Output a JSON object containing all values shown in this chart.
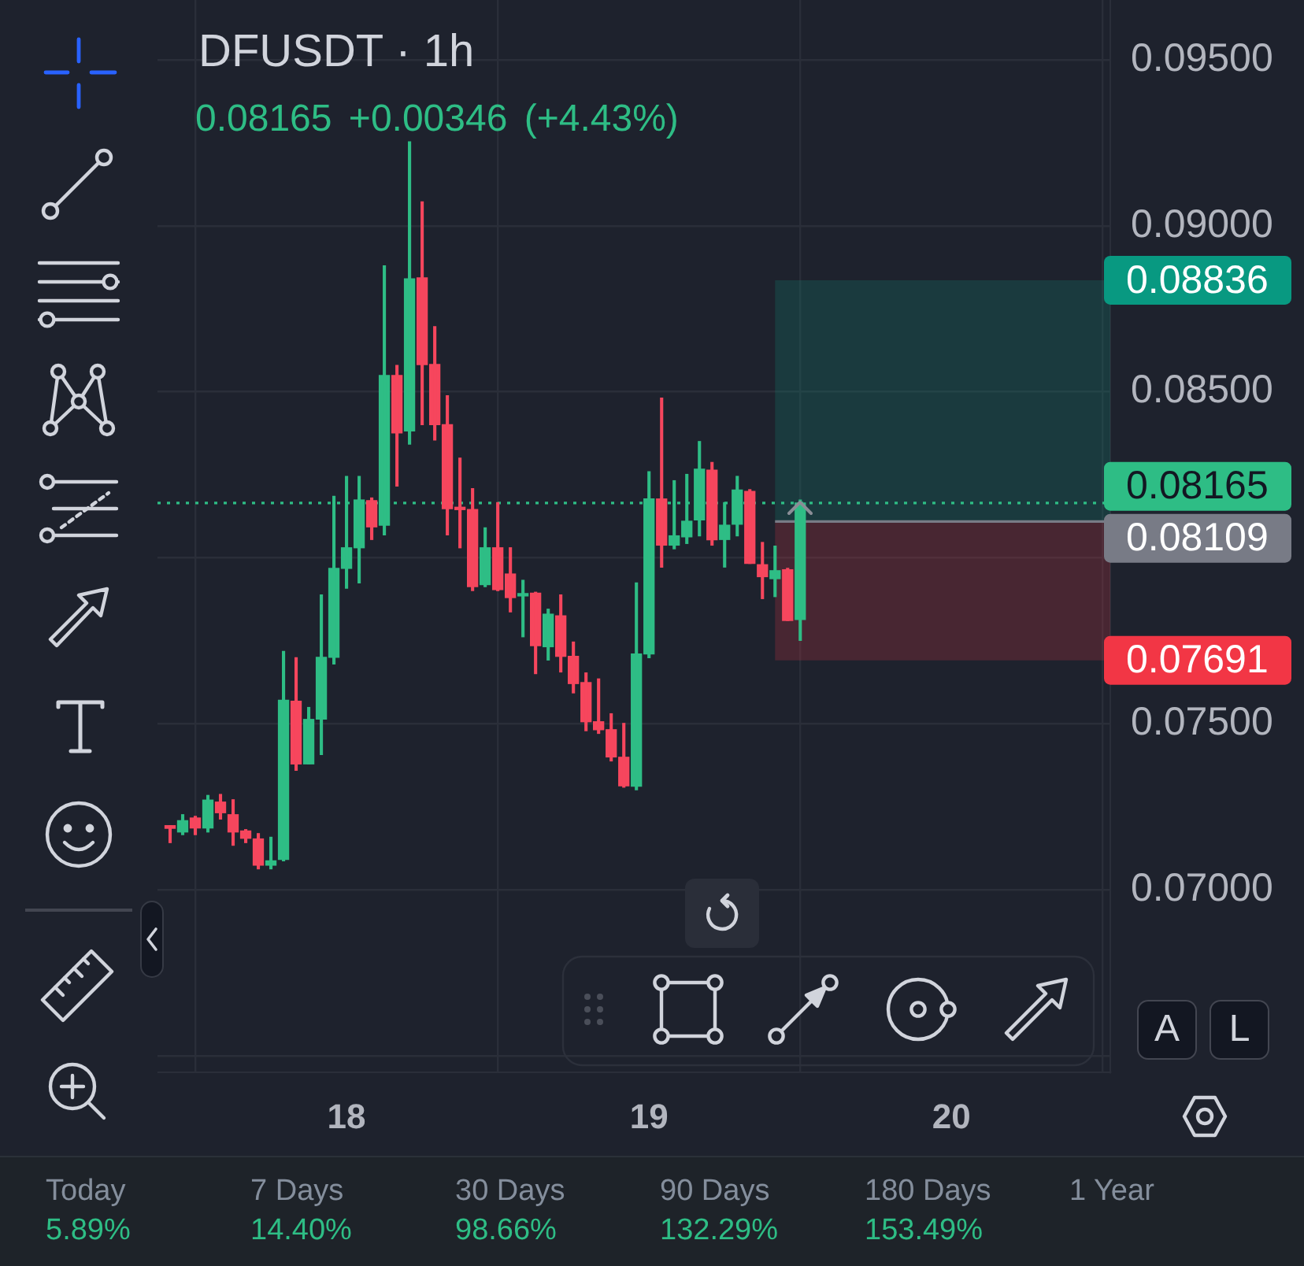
{
  "chart_data": {
    "type": "candlestick",
    "title": "DFUSDT · 1h",
    "subtitle": "0.08165 +0.00346 (+4.43%)",
    "x": [
      17.4167,
      17.4583,
      17.5,
      17.5417,
      17.5833,
      17.625,
      17.6667,
      17.7083,
      17.75,
      17.7917,
      17.8333,
      17.875,
      17.9167,
      17.9583,
      18,
      18.0417,
      18.0833,
      18.125,
      18.1667,
      18.2083,
      18.25,
      18.2917,
      18.3333,
      18.375,
      18.4167,
      18.4583,
      18.5,
      18.5417,
      18.5833,
      18.625,
      18.6667,
      18.7083,
      18.75,
      18.7917,
      18.8333,
      18.875,
      18.9167,
      18.9583,
      19,
      19.0417,
      19.0833,
      19.125,
      19.1667,
      19.2083,
      19.25,
      19.2917,
      19.3333,
      19.375,
      19.4167,
      19.4583,
      19.5
    ],
    "ohlc": [
      [
        0.07193,
        0.07193,
        0.07142,
        0.07185
      ],
      [
        0.07174,
        0.07226,
        0.07166,
        0.07208
      ],
      [
        0.07216,
        0.07221,
        0.07166,
        0.07186
      ],
      [
        0.07186,
        0.07284,
        0.07174,
        0.0727
      ],
      [
        0.07264,
        0.07287,
        0.07213,
        0.07232
      ],
      [
        0.07226,
        0.07271,
        0.07134,
        0.07174
      ],
      [
        0.07177,
        0.07181,
        0.07142,
        0.07155
      ],
      [
        0.07153,
        0.07169,
        0.07063,
        0.07074
      ],
      [
        0.07074,
        0.07158,
        0.07063,
        0.07087
      ],
      [
        0.07091,
        0.07718,
        0.07087,
        0.07571
      ],
      [
        0.07568,
        0.07699,
        0.0736,
        0.07379
      ],
      [
        0.07379,
        0.07549,
        0.07379,
        0.07513
      ],
      [
        0.07514,
        0.07888,
        0.07407,
        0.077
      ],
      [
        0.077,
        0.08185,
        0.0768,
        0.07968
      ],
      [
        0.07968,
        0.08245,
        0.07908,
        0.0803
      ],
      [
        0.0803,
        0.08245,
        0.07924,
        0.08174
      ],
      [
        0.08172,
        0.0818,
        0.08055,
        0.08093
      ],
      [
        0.08098,
        0.08879,
        0.08069,
        0.08549
      ],
      [
        0.08549,
        0.08579,
        0.08216,
        0.08376
      ],
      [
        0.08382,
        0.09253,
        0.08342,
        0.0884
      ],
      [
        0.08843,
        0.09072,
        0.08401,
        0.08582
      ],
      [
        0.08582,
        0.08696,
        0.08355,
        0.08401
      ],
      [
        0.08401,
        0.08488,
        0.08069,
        0.08148
      ],
      [
        0.08148,
        0.083,
        0.0803,
        0.08145
      ],
      [
        0.08145,
        0.08208,
        0.07901,
        0.07913
      ],
      [
        0.07919,
        0.0809,
        0.07913,
        0.0803
      ],
      [
        0.0803,
        0.08166,
        0.07901,
        0.07904
      ],
      [
        0.07951,
        0.0803,
        0.07837,
        0.0788
      ],
      [
        0.07885,
        0.07932,
        0.07762,
        0.0789
      ],
      [
        0.07893,
        0.07896,
        0.07651,
        0.07735
      ],
      [
        0.07732,
        0.07845,
        0.07692,
        0.0783
      ],
      [
        0.07825,
        0.07888,
        0.07656,
        0.07703
      ],
      [
        0.07703,
        0.07746,
        0.07593,
        0.07621
      ],
      [
        0.07624,
        0.07653,
        0.07479,
        0.07506
      ],
      [
        0.07506,
        0.07635,
        0.07471,
        0.07482
      ],
      [
        0.07482,
        0.0753,
        0.07388,
        0.074
      ],
      [
        0.07399,
        0.07501,
        0.07309,
        0.07313
      ],
      [
        0.07312,
        0.07924,
        0.07301,
        0.0771
      ],
      [
        0.0771,
        0.08259,
        0.07699,
        0.08177
      ],
      [
        0.08177,
        0.08481,
        0.07972,
        0.08038
      ],
      [
        0.08038,
        0.08232,
        0.08027,
        0.08066
      ],
      [
        0.08063,
        0.08251,
        0.08043,
        0.0811
      ],
      [
        0.08114,
        0.0835,
        0.08066,
        0.08267
      ],
      [
        0.08264,
        0.08287,
        0.08038,
        0.08054
      ],
      [
        0.08055,
        0.08166,
        0.07972,
        0.08098
      ],
      [
        0.08101,
        0.08245,
        0.08066,
        0.08204
      ],
      [
        0.082,
        0.08205,
        0.07983,
        0.07983
      ],
      [
        0.07979,
        0.08046,
        0.07877,
        0.07943
      ],
      [
        0.07937,
        0.08035,
        0.07883,
        0.07961
      ],
      [
        0.07964,
        0.07968,
        0.07811,
        0.07811
      ],
      [
        0.07814,
        0.08174,
        0.07751,
        0.08165
      ]
    ],
    "colors": [
      "#f6465d",
      "#2ebd85",
      "#f6465d",
      "#2ebd85",
      "#f6465d",
      "#f6465d",
      "#f6465d",
      "#f6465d",
      "#2ebd85",
      "#2ebd85",
      "#f6465d",
      "#2ebd85",
      "#2ebd85",
      "#2ebd85",
      "#2ebd85",
      "#2ebd85",
      "#f6465d",
      "#2ebd85",
      "#f6465d",
      "#2ebd85",
      "#f6465d",
      "#f6465d",
      "#f6465d",
      "#f6465d",
      "#f6465d",
      "#2ebd85",
      "#f6465d",
      "#f6465d",
      "#2ebd85",
      "#f6465d",
      "#2ebd85",
      "#f6465d",
      "#f6465d",
      "#f6465d",
      "#f6465d",
      "#f6465d",
      "#f6465d",
      "#2ebd85",
      "#2ebd85",
      "#f6465d",
      "#2ebd85",
      "#2ebd85",
      "#2ebd85",
      "#f6465d",
      "#2ebd85",
      "#2ebd85",
      "#f6465d",
      "#f6465d",
      "#2ebd85",
      "#f6465d",
      "#2ebd85"
    ],
    "xlim": [
      17.375,
      20.525
    ],
    "xticks": [
      18,
      19,
      20
    ],
    "ylim": [
      0.0645,
      0.0968
    ],
    "yticks": [
      {
        "value": 0.065,
        "label": null
      },
      {
        "value": 0.07,
        "label": "0.07000"
      },
      {
        "value": 0.075,
        "label": "0.07500"
      },
      {
        "value": 0.08,
        "label": null
      },
      {
        "value": 0.085,
        "label": "0.08500"
      },
      {
        "value": 0.09,
        "label": "0.09000"
      },
      {
        "value": 0.095,
        "label": "0.09500"
      }
    ],
    "grid": true,
    "ref_lines": [
      {
        "axis": "y",
        "value": 0.08165,
        "label": "0.08165",
        "color": "#2ebd85",
        "line_style": "dotted"
      },
      {
        "axis": "y",
        "value": 0.08109,
        "label": "0.08109",
        "color": "#787b86"
      }
    ],
    "bands": [
      {
        "axis": "y",
        "from": 0.08109,
        "to": 0.08836,
        "label": "0.08836",
        "color": "#089981"
      },
      {
        "axis": "y",
        "from": 0.08109,
        "to": 0.07691,
        "label": "0.07691",
        "color": "#f23645"
      }
    ],
    "annotations": [
      "A",
      "L",
      "Today",
      "5.89%",
      "7 Days",
      "14.40%",
      "30 Days",
      "98.66%",
      "90 Days",
      "132.29%",
      "180 Days",
      "153.49%",
      "1 Year"
    ]
  }
}
